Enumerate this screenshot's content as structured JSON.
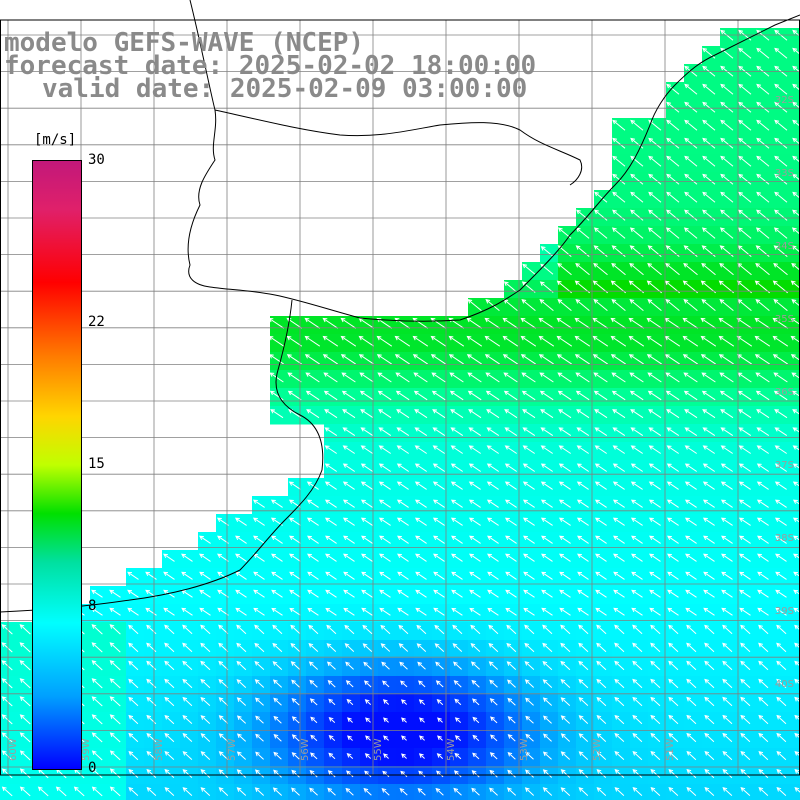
{
  "title": {
    "model_line": "modelo GEFS-WAVE (NCEP)",
    "forecast_line": "forecast date: 2025-02-02 18:00:00",
    "valid_line": "valid date: 2025-02-09 03:00:00"
  },
  "colorbar": {
    "unit": "[m/s]",
    "ticks": [
      {
        "label": "30",
        "value": 30
      },
      {
        "label": "22",
        "value": 22
      },
      {
        "label": "15",
        "value": 15
      },
      {
        "label": "8",
        "value": 8
      },
      {
        "label": "0",
        "value": 0
      }
    ]
  },
  "lat_labels": [
    "32S",
    "33S",
    "34S",
    "35S",
    "36S",
    "37S",
    "38S",
    "39S",
    "40S"
  ],
  "lon_labels": [
    "60W",
    "59W",
    "58W",
    "57W",
    "56W",
    "55W",
    "54W",
    "53W",
    "52W",
    "51W"
  ],
  "colors": {
    "land": "#ffffff",
    "grid": "#808080",
    "coast": "#000000",
    "title": "#8a8a8a",
    "arrow": "#ffffff"
  }
}
